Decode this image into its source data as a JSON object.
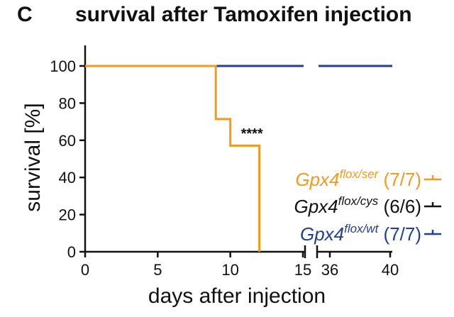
{
  "panel_label": "C",
  "chart_data": {
    "type": "line",
    "title": "survival after Tamoxifen injection",
    "xlabel": "days after injection",
    "ylabel": "survival [%]",
    "ylim": [
      0,
      100
    ],
    "yticks": [
      0,
      20,
      40,
      60,
      80,
      100
    ],
    "x_segments": [
      {
        "range": [
          0,
          15
        ],
        "ticks": [
          0,
          5,
          10,
          15
        ]
      },
      {
        "range": [
          36,
          40
        ],
        "ticks": [
          36,
          40
        ]
      }
    ],
    "annotation": {
      "text": "****",
      "x": 11,
      "y": 61
    },
    "series": [
      {
        "name": "Gpx4",
        "superscript": "flox/ser",
        "count": "(7/7)",
        "color": "#f29a1e",
        "steps": [
          [
            0,
            100
          ],
          [
            9,
            100
          ],
          [
            9,
            71.4
          ],
          [
            10,
            71.4
          ],
          [
            10,
            57.1
          ],
          [
            12,
            57.1
          ],
          [
            12,
            0
          ]
        ]
      },
      {
        "name": "Gpx4",
        "superscript": "flox/cys",
        "count": "(6/6)",
        "color": "#111111",
        "steps": [
          [
            0,
            100
          ],
          [
            15,
            100
          ],
          [
            36,
            100
          ],
          [
            40,
            100
          ]
        ]
      },
      {
        "name": "Gpx4",
        "superscript": "flox/wt",
        "count": "(7/7)",
        "color": "#1f3f99",
        "steps": [
          [
            0,
            100
          ],
          [
            15,
            100
          ],
          [
            36,
            100
          ],
          [
            40,
            100
          ]
        ]
      }
    ]
  }
}
